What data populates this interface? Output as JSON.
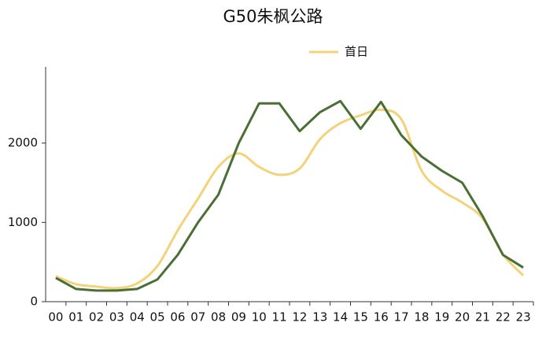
{
  "chart_data": {
    "type": "line",
    "title": "G50朱枫公路",
    "categories": [
      "00",
      "01",
      "02",
      "03",
      "04",
      "05",
      "06",
      "07",
      "08",
      "09",
      "10",
      "11",
      "12",
      "13",
      "14",
      "15",
      "16",
      "17",
      "18",
      "19",
      "20",
      "21",
      "22",
      "23"
    ],
    "series": [
      {
        "name": "首日",
        "color": "#f3d27a",
        "smooth": true,
        "values": [
          320,
          220,
          190,
          170,
          230,
          450,
          900,
          1300,
          1700,
          1870,
          1700,
          1600,
          1680,
          2050,
          2250,
          2350,
          2420,
          2300,
          1650,
          1400,
          1250,
          1050,
          600,
          330
        ]
      },
      {
        "color": "#4a6f35",
        "smooth": false,
        "values": [
          300,
          160,
          140,
          140,
          160,
          280,
          590,
          1000,
          1350,
          2000,
          2500,
          2500,
          2150,
          2390,
          2530,
          2180,
          2520,
          2100,
          1830,
          1650,
          1500,
          1080,
          590,
          430
        ]
      }
    ],
    "ylim": [
      0,
      2960
    ],
    "yticks": [
      0,
      1000,
      2000
    ]
  }
}
